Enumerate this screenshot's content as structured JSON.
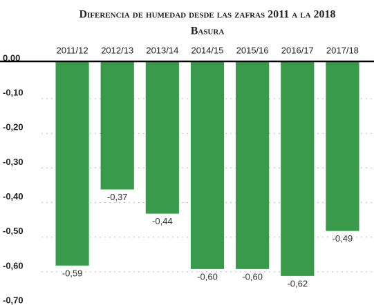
{
  "chart_data": {
    "type": "bar",
    "title": "Diferencia de humedad desde las zafras 2011 a la 2018",
    "subtitle": "Basura",
    "categories": [
      "2011/12",
      "2012/13",
      "2013/14",
      "2014/15",
      "2015/16",
      "2016/17",
      "2017/18"
    ],
    "values": [
      -0.59,
      -0.37,
      -0.44,
      -0.6,
      -0.6,
      -0.62,
      -0.49
    ],
    "value_labels": [
      "-0,59",
      "-0,37",
      "-0,44",
      "-0,60",
      "-0,60",
      "-0,62",
      "-0,49"
    ],
    "color": "#3a9a4b",
    "ylim": [
      -0.7,
      0
    ],
    "yticks": [
      {
        "value": 0,
        "label": "0,00"
      },
      {
        "value": -0.1,
        "label": "-0,10"
      },
      {
        "value": -0.2,
        "label": "-0,20"
      },
      {
        "value": -0.3,
        "label": "-0,30"
      },
      {
        "value": -0.4,
        "label": "-0,40"
      },
      {
        "value": -0.5,
        "label": "-0,50"
      },
      {
        "value": -0.6,
        "label": "-0,60"
      },
      {
        "value": -0.7,
        "label": "-0,70"
      }
    ],
    "grid": true
  }
}
